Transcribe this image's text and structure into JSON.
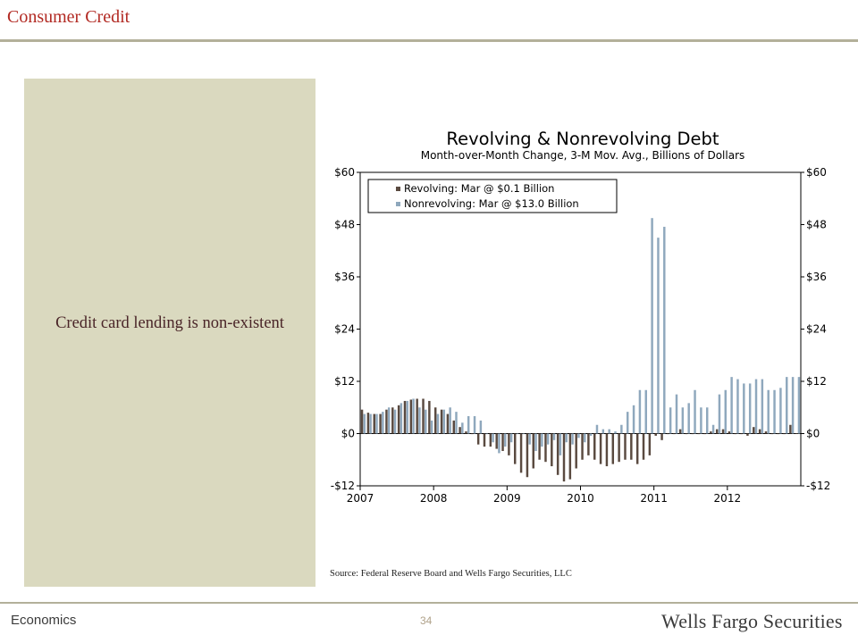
{
  "header": {
    "title": "Consumer Credit"
  },
  "panel": {
    "text": "Credit card lending is non-existent"
  },
  "footer": {
    "left": "Economics",
    "page": "34",
    "brand": "Wells Fargo Securities"
  },
  "source": "Source: Federal Reserve Board and Wells Fargo Securities, LLC",
  "colors": {
    "revolving": "#5a4a40",
    "nonrevolving": "#8fa8bd",
    "accent": "#b22a23",
    "panel": "#dad9bf"
  },
  "chart_data": {
    "type": "bar",
    "title": "Revolving & Nonrevolving Debt",
    "subtitle": "Month-over-Month Change, 3-M Mov. Avg., Billions of Dollars",
    "ylim": [
      -12,
      60
    ],
    "yticks": [
      -12,
      0,
      12,
      24,
      36,
      48,
      60
    ],
    "ytick_labels": [
      "-$12",
      "$0",
      "$12",
      "$24",
      "$36",
      "$48",
      "$60"
    ],
    "xtick_labels": [
      "2007",
      "2008",
      "2009",
      "2010",
      "2011",
      "2012"
    ],
    "x_start": "2007-01",
    "legend_position": "top-left",
    "grid": false,
    "series": [
      {
        "name": "Revolving: Mar @ $0.1 Billion",
        "values": [
          5.5,
          4.8,
          4.5,
          4.5,
          5.5,
          6.0,
          6.5,
          7.5,
          7.8,
          8.0,
          8.0,
          7.5,
          6.0,
          5.5,
          4.5,
          3.0,
          1.5,
          0.5,
          0.0,
          -2.5,
          -3.0,
          -3.0,
          -3.5,
          -4.0,
          -5.0,
          -7.0,
          -9.0,
          -10.0,
          -8.0,
          -6.0,
          -6.5,
          -7.5,
          -9.5,
          -11.0,
          -10.5,
          -8.0,
          -6.0,
          -5.0,
          -6.0,
          -7.0,
          -7.5,
          -7.0,
          -6.5,
          -6.0,
          -6.0,
          -7.0,
          -6.0,
          -5.0,
          -0.5,
          -1.5,
          0.0,
          0.0,
          1.0,
          0.0,
          0.0,
          0.0,
          0.0,
          0.5,
          1.0,
          1.0,
          0.5,
          0.0,
          0.0,
          -0.5,
          1.5,
          1.0,
          0.5,
          0.0,
          0.0,
          0.0,
          2.0,
          0.1
        ],
        "color": "#5a4a40"
      },
      {
        "name": "Nonrevolving: Mar @ $13.0 Billion",
        "values": [
          4.5,
          4.5,
          4.5,
          5.0,
          6.0,
          5.5,
          7.0,
          7.5,
          8.0,
          6.0,
          5.5,
          3.0,
          4.5,
          5.5,
          6.0,
          5.0,
          2.5,
          4.0,
          4.0,
          3.0,
          0.0,
          -2.0,
          -4.5,
          -3.0,
          -2.0,
          0.0,
          0.0,
          -2.5,
          -4.0,
          -3.0,
          -2.5,
          -1.5,
          -5.0,
          -2.0,
          -2.5,
          -1.0,
          -2.0,
          -0.5,
          2.0,
          1.0,
          1.0,
          0.5,
          2.0,
          5.0,
          6.5,
          10.0,
          10.0,
          49.5,
          45.0,
          47.5,
          6.0,
          9.0,
          6.0,
          7.0,
          10.0,
          6.0,
          6.0,
          2.0,
          9.0,
          10.0,
          13.0,
          12.5,
          11.5,
          11.5,
          12.5,
          12.5,
          10.0,
          10.0,
          10.5,
          13.0,
          13.0,
          13.0
        ],
        "color": "#8fa8bd"
      }
    ]
  }
}
